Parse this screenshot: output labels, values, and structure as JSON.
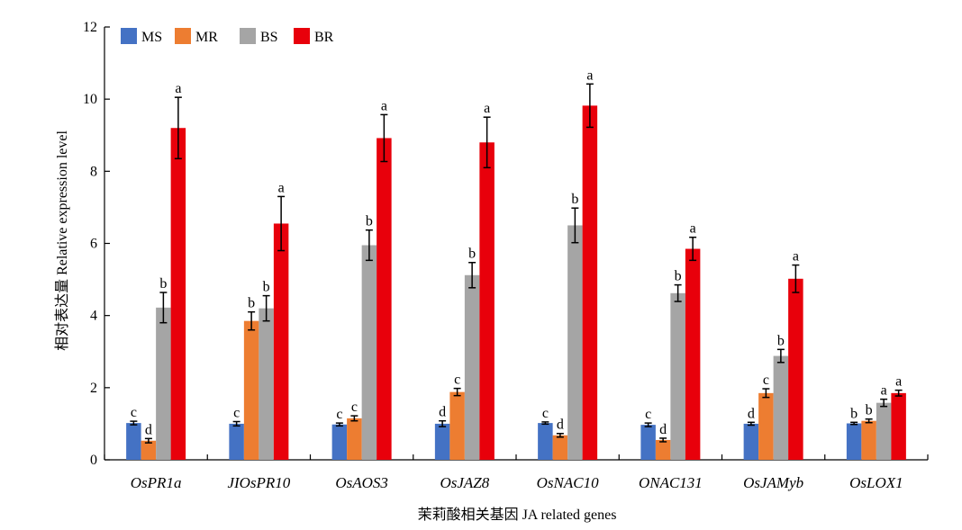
{
  "chart_data": {
    "type": "bar",
    "title": "",
    "xlabel": "茉莉酸相关基因 JA related genes",
    "ylabel": "相对表达量 Relative expression level",
    "ylim": [
      0,
      12
    ],
    "yticks": [
      0,
      2,
      4,
      6,
      8,
      10,
      12
    ],
    "grid": false,
    "legend_position": "top-left",
    "categories": [
      "OsPR1a",
      "JIOsPR10",
      "OsAOS3",
      "OsJAZ8",
      "OsNAC10",
      "ONAC131",
      "OsJAMyb",
      "OsLOX1"
    ],
    "series": [
      {
        "name": "MS",
        "color": "#4472C4",
        "values": [
          1.02,
          1.0,
          0.98,
          1.0,
          1.02,
          0.97,
          1.0,
          1.01
        ],
        "errors": [
          0.05,
          0.06,
          0.04,
          0.08,
          0.03,
          0.05,
          0.04,
          0.03
        ],
        "labels": [
          "c",
          "c",
          "c",
          "d",
          "c",
          "c",
          "d",
          "b"
        ]
      },
      {
        "name": "MR",
        "color": "#ED7D31",
        "values": [
          0.53,
          3.85,
          1.15,
          1.88,
          0.68,
          0.55,
          1.85,
          1.08
        ],
        "errors": [
          0.06,
          0.25,
          0.07,
          0.1,
          0.05,
          0.05,
          0.12,
          0.05
        ],
        "labels": [
          "d",
          "b",
          "c",
          "c",
          "d",
          "d",
          "c",
          "b"
        ]
      },
      {
        "name": "BS",
        "color": "#A5A5A5",
        "values": [
          4.22,
          4.2,
          5.95,
          5.12,
          6.5,
          4.62,
          2.88,
          1.58
        ],
        "errors": [
          0.42,
          0.35,
          0.42,
          0.35,
          0.48,
          0.23,
          0.18,
          0.1
        ],
        "labels": [
          "b",
          "b",
          "b",
          "b",
          "b",
          "b",
          "b",
          "a"
        ]
      },
      {
        "name": "BR",
        "color": "#E8000B",
        "values": [
          9.2,
          6.55,
          8.92,
          8.8,
          9.82,
          5.85,
          5.02,
          1.85
        ],
        "errors": [
          0.85,
          0.75,
          0.65,
          0.7,
          0.6,
          0.32,
          0.38,
          0.08
        ],
        "labels": [
          "a",
          "a",
          "a",
          "a",
          "a",
          "a",
          "a",
          "a"
        ]
      }
    ]
  }
}
